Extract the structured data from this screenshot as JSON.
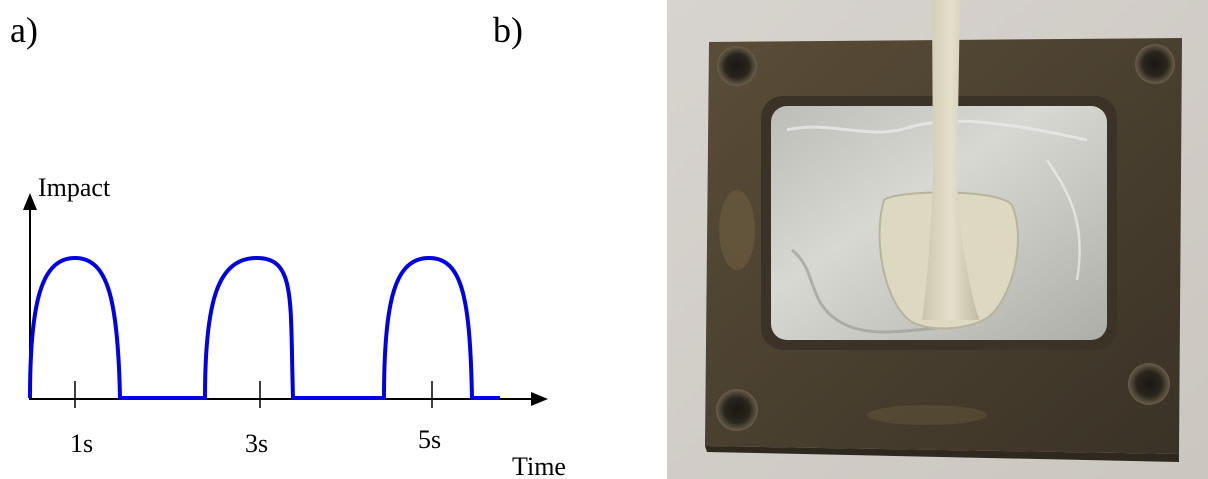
{
  "panels": {
    "a_label": "a)",
    "b_label": "b)"
  },
  "chart_data": {
    "type": "line",
    "ylabel": "Impact",
    "xlabel": "Time",
    "tick_labels": [
      "1s",
      "3s",
      "5s"
    ],
    "series_color": "#0000e6",
    "axis_color": "#000000",
    "pulses": [
      {
        "center_s": 1,
        "start_s": 0,
        "end_s": 2
      },
      {
        "center_s": 3,
        "start_s": 2,
        "end_s": 4
      },
      {
        "center_s": 5,
        "start_s": 4,
        "end_s": 6
      }
    ],
    "pulse_width_s": 1,
    "gap_s": 1,
    "peak_value": 1
  },
  "photo": {
    "background_color": "#d6d2cd",
    "plate_color": "#4a4030",
    "metal_color": "#c9c9c4",
    "insert_color": "#dcd8c2"
  }
}
